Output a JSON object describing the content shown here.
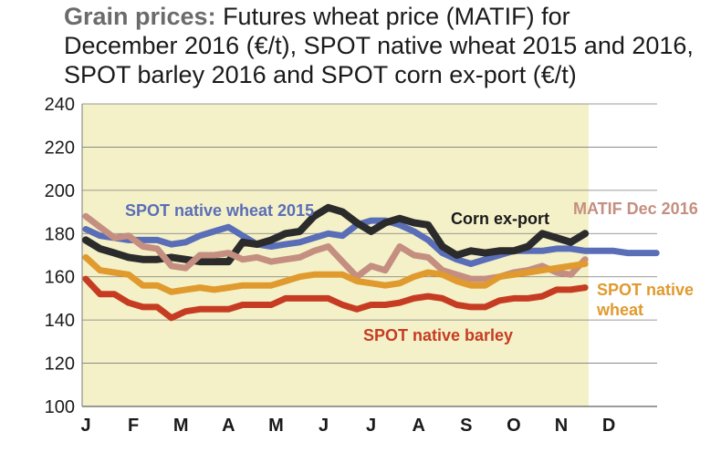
{
  "title": {
    "bold": "Grain prices:",
    "line1": " Futures wheat price (MATIF) for",
    "line2": "December 2016 (€/t), SPOT native wheat 2015 and 2016,",
    "line3": "SPOT barley 2016 and SPOT corn ex-port (€/t)"
  },
  "colors": {
    "background": "#f4f1c8",
    "grid": "#7a7a7a",
    "spot_2015": "#5a6eb8",
    "corn": "#2b2b2b",
    "matif": "#c48f80",
    "spot_wheat": "#e09a2e",
    "barley": "#c63c22"
  },
  "chart_data": {
    "type": "line",
    "title": "Grain prices: Futures wheat price (MATIF) for December 2016 (€/t), SPOT native wheat 2015 and 2016, SPOT barley 2016 and SPOT corn ex-port (€/t)",
    "xlabel": "",
    "ylabel": "",
    "ylim": [
      100,
      240
    ],
    "yticks": [
      "240",
      "220",
      "200",
      "180",
      "160",
      "140",
      "120",
      "100"
    ],
    "xticks": [
      "J",
      "F",
      "M",
      "A",
      "M",
      "J",
      "J",
      "A",
      "S",
      "O",
      "N",
      "D"
    ],
    "grid": true,
    "series": [
      {
        "name": "SPOT native wheat 2015",
        "color": "#5a6eb8",
        "points": [
          [
            0,
            182
          ],
          [
            0.3,
            179
          ],
          [
            0.6,
            178
          ],
          [
            0.9,
            177
          ],
          [
            1.2,
            177
          ],
          [
            1.5,
            177
          ],
          [
            1.8,
            175
          ],
          [
            2.1,
            176
          ],
          [
            2.4,
            179
          ],
          [
            2.7,
            181
          ],
          [
            3.0,
            183
          ],
          [
            3.3,
            179
          ],
          [
            3.6,
            175
          ],
          [
            3.9,
            174
          ],
          [
            4.2,
            175
          ],
          [
            4.5,
            176
          ],
          [
            4.8,
            178
          ],
          [
            5.1,
            180
          ],
          [
            5.4,
            179
          ],
          [
            5.7,
            184
          ],
          [
            6.0,
            186
          ],
          [
            6.3,
            186
          ],
          [
            6.6,
            184
          ],
          [
            6.9,
            181
          ],
          [
            7.2,
            177
          ],
          [
            7.5,
            171
          ],
          [
            7.8,
            168
          ],
          [
            8.1,
            166
          ],
          [
            8.4,
            168
          ],
          [
            8.7,
            170
          ],
          [
            9.0,
            172
          ],
          [
            9.3,
            172
          ],
          [
            9.6,
            172
          ],
          [
            9.9,
            173
          ],
          [
            10.2,
            173
          ],
          [
            10.5,
            172
          ],
          [
            10.8,
            172
          ],
          [
            11.1,
            172
          ],
          [
            11.4,
            171
          ],
          [
            11.7,
            171
          ],
          [
            12.0,
            171
          ]
        ]
      },
      {
        "name": "Corn ex-port",
        "color": "#2b2b2b",
        "points": [
          [
            0,
            177
          ],
          [
            0.3,
            173
          ],
          [
            0.6,
            171
          ],
          [
            0.9,
            169
          ],
          [
            1.2,
            168
          ],
          [
            1.5,
            168
          ],
          [
            1.8,
            169
          ],
          [
            2.1,
            168
          ],
          [
            2.4,
            167
          ],
          [
            2.7,
            167
          ],
          [
            3.0,
            167
          ],
          [
            3.3,
            176
          ],
          [
            3.6,
            175
          ],
          [
            3.9,
            177
          ],
          [
            4.2,
            180
          ],
          [
            4.5,
            181
          ],
          [
            4.8,
            188
          ],
          [
            5.1,
            192
          ],
          [
            5.4,
            190
          ],
          [
            5.7,
            185
          ],
          [
            6.0,
            181
          ],
          [
            6.3,
            185
          ],
          [
            6.6,
            187
          ],
          [
            6.9,
            185
          ],
          [
            7.2,
            184
          ],
          [
            7.5,
            174
          ],
          [
            7.8,
            170
          ],
          [
            8.1,
            172
          ],
          [
            8.4,
            171
          ],
          [
            8.7,
            172
          ],
          [
            9.0,
            172
          ],
          [
            9.3,
            174
          ],
          [
            9.6,
            180
          ],
          [
            9.9,
            178
          ],
          [
            10.2,
            176
          ],
          [
            10.5,
            180
          ]
        ]
      },
      {
        "name": "MATIF Dec 2016",
        "color": "#c48f80",
        "points": [
          [
            0,
            188
          ],
          [
            0.3,
            183
          ],
          [
            0.6,
            178
          ],
          [
            0.9,
            179
          ],
          [
            1.2,
            174
          ],
          [
            1.5,
            173
          ],
          [
            1.8,
            165
          ],
          [
            2.1,
            164
          ],
          [
            2.4,
            170
          ],
          [
            2.7,
            170
          ],
          [
            3.0,
            171
          ],
          [
            3.3,
            168
          ],
          [
            3.6,
            169
          ],
          [
            3.9,
            167
          ],
          [
            4.2,
            168
          ],
          [
            4.5,
            169
          ],
          [
            4.8,
            172
          ],
          [
            5.1,
            174
          ],
          [
            5.4,
            167
          ],
          [
            5.7,
            160
          ],
          [
            6.0,
            165
          ],
          [
            6.3,
            163
          ],
          [
            6.6,
            174
          ],
          [
            6.9,
            170
          ],
          [
            7.2,
            169
          ],
          [
            7.5,
            163
          ],
          [
            7.8,
            161
          ],
          [
            8.1,
            159
          ],
          [
            8.4,
            159
          ],
          [
            8.7,
            160
          ],
          [
            9.0,
            162
          ],
          [
            9.3,
            163
          ],
          [
            9.6,
            165
          ],
          [
            9.9,
            162
          ],
          [
            10.2,
            161
          ],
          [
            10.5,
            168
          ]
        ]
      },
      {
        "name": "SPOT native wheat",
        "color": "#e09a2e",
        "points": [
          [
            0,
            169
          ],
          [
            0.3,
            163
          ],
          [
            0.6,
            162
          ],
          [
            0.9,
            161
          ],
          [
            1.2,
            156
          ],
          [
            1.5,
            156
          ],
          [
            1.8,
            153
          ],
          [
            2.1,
            154
          ],
          [
            2.4,
            155
          ],
          [
            2.7,
            154
          ],
          [
            3.0,
            155
          ],
          [
            3.3,
            156
          ],
          [
            3.6,
            156
          ],
          [
            3.9,
            156
          ],
          [
            4.2,
            158
          ],
          [
            4.5,
            160
          ],
          [
            4.8,
            161
          ],
          [
            5.1,
            161
          ],
          [
            5.4,
            161
          ],
          [
            5.7,
            158
          ],
          [
            6.0,
            157
          ],
          [
            6.3,
            156
          ],
          [
            6.6,
            157
          ],
          [
            6.9,
            160
          ],
          [
            7.2,
            162
          ],
          [
            7.5,
            161
          ],
          [
            7.8,
            158
          ],
          [
            8.1,
            156
          ],
          [
            8.4,
            156
          ],
          [
            8.7,
            160
          ],
          [
            9.0,
            161
          ],
          [
            9.3,
            162
          ],
          [
            9.6,
            163
          ],
          [
            9.9,
            164
          ],
          [
            10.2,
            165
          ],
          [
            10.5,
            166
          ]
        ]
      },
      {
        "name": "SPOT native barley",
        "color": "#c63c22",
        "points": [
          [
            0,
            159
          ],
          [
            0.3,
            152
          ],
          [
            0.6,
            152
          ],
          [
            0.9,
            148
          ],
          [
            1.2,
            146
          ],
          [
            1.5,
            146
          ],
          [
            1.8,
            141
          ],
          [
            2.1,
            144
          ],
          [
            2.4,
            145
          ],
          [
            2.7,
            145
          ],
          [
            3.0,
            145
          ],
          [
            3.3,
            147
          ],
          [
            3.6,
            147
          ],
          [
            3.9,
            147
          ],
          [
            4.2,
            150
          ],
          [
            4.5,
            150
          ],
          [
            4.8,
            150
          ],
          [
            5.1,
            150
          ],
          [
            5.4,
            147
          ],
          [
            5.7,
            145
          ],
          [
            6.0,
            147
          ],
          [
            6.3,
            147
          ],
          [
            6.6,
            148
          ],
          [
            6.9,
            150
          ],
          [
            7.2,
            151
          ],
          [
            7.5,
            150
          ],
          [
            7.8,
            147
          ],
          [
            8.1,
            146
          ],
          [
            8.4,
            146
          ],
          [
            8.7,
            149
          ],
          [
            9.0,
            150
          ],
          [
            9.3,
            150
          ],
          [
            9.6,
            151
          ],
          [
            9.9,
            154
          ],
          [
            10.2,
            154
          ],
          [
            10.5,
            155
          ]
        ]
      }
    ],
    "labels": {
      "spot_2015": "SPOT native wheat 2015",
      "corn": "Corn ex-port",
      "matif": "MATIF Dec 2016",
      "spot_wheat_1": "SPOT native",
      "spot_wheat_2": "wheat",
      "barley": "SPOT native barley"
    }
  }
}
